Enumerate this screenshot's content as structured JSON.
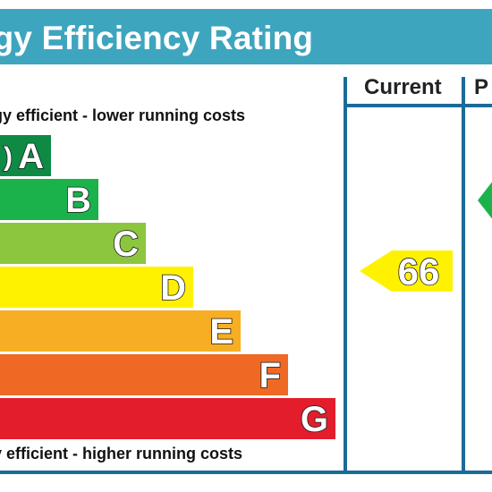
{
  "header": {
    "title": "rgy Efficiency Rating"
  },
  "captions": {
    "top": "gy efficient - lower running costs",
    "bottom": "y efficient - higher running costs"
  },
  "columns": {
    "current": "Current",
    "potential": "P"
  },
  "chart_data": {
    "type": "bar",
    "categories": [
      "A",
      "B",
      "C",
      "D",
      "E",
      "F",
      "G"
    ],
    "band_prefixes": {
      "A": ")"
    },
    "colors": [
      "#0f8a44",
      "#1bb24b",
      "#8cc63f",
      "#fff200",
      "#f7ae22",
      "#ef6924",
      "#e31d2c"
    ],
    "current": {
      "value": "66",
      "band": "D",
      "color": "#fff200"
    },
    "potential": {
      "band": "B",
      "color": "#1bb24b"
    }
  }
}
